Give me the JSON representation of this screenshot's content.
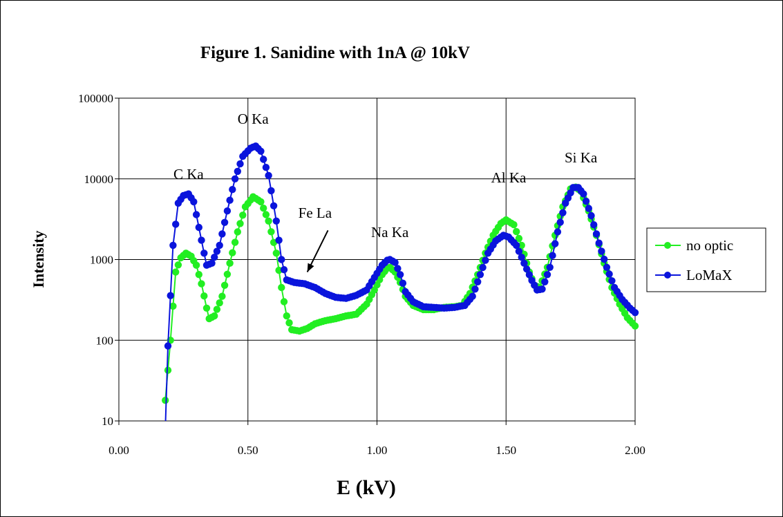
{
  "chart_data": {
    "type": "line",
    "title": "Figure 1.  Sanidine with 1nA @ 10kV",
    "xlabel": "E (kV)",
    "ylabel": "Intensity",
    "xlim": [
      0,
      2
    ],
    "ylim": [
      10,
      100000
    ],
    "yscale": "log",
    "grid": true,
    "x_tick_labels": [
      "0.00",
      "0.50",
      "1.00",
      "1.50",
      "2.00"
    ],
    "x_ticks": [
      0,
      0.5,
      1,
      1.5,
      2
    ],
    "y_tick_labels": [
      "10",
      "100",
      "1000",
      "10000",
      "100000"
    ],
    "y_ticks": [
      10,
      100,
      1000,
      10000,
      100000
    ],
    "legend_position": "right",
    "series": [
      {
        "name": "no optic",
        "color": "#22ee22",
        "points": [
          [
            0.18,
            18
          ],
          [
            0.2,
            100
          ],
          [
            0.22,
            700
          ],
          [
            0.24,
            1050
          ],
          [
            0.26,
            1200
          ],
          [
            0.28,
            1100
          ],
          [
            0.3,
            850
          ],
          [
            0.32,
            500
          ],
          [
            0.34,
            250
          ],
          [
            0.35,
            185
          ],
          [
            0.37,
            200
          ],
          [
            0.4,
            350
          ],
          [
            0.43,
            900
          ],
          [
            0.46,
            2200
          ],
          [
            0.49,
            4500
          ],
          [
            0.52,
            6000
          ],
          [
            0.55,
            5200
          ],
          [
            0.58,
            3000
          ],
          [
            0.61,
            1200
          ],
          [
            0.63,
            450
          ],
          [
            0.65,
            200
          ],
          [
            0.67,
            135
          ],
          [
            0.7,
            130
          ],
          [
            0.73,
            140
          ],
          [
            0.76,
            160
          ],
          [
            0.8,
            175
          ],
          [
            0.84,
            185
          ],
          [
            0.88,
            200
          ],
          [
            0.92,
            210
          ],
          [
            0.96,
            280
          ],
          [
            0.99,
            420
          ],
          [
            1.02,
            650
          ],
          [
            1.04,
            780
          ],
          [
            1.05,
            800
          ],
          [
            1.07,
            700
          ],
          [
            1.09,
            520
          ],
          [
            1.11,
            350
          ],
          [
            1.14,
            270
          ],
          [
            1.18,
            240
          ],
          [
            1.22,
            240
          ],
          [
            1.26,
            255
          ],
          [
            1.3,
            260
          ],
          [
            1.33,
            270
          ],
          [
            1.36,
            380
          ],
          [
            1.39,
            650
          ],
          [
            1.42,
            1200
          ],
          [
            1.45,
            2000
          ],
          [
            1.48,
            2800
          ],
          [
            1.5,
            3100
          ],
          [
            1.53,
            2700
          ],
          [
            1.56,
            1500
          ],
          [
            1.59,
            700
          ],
          [
            1.61,
            480
          ],
          [
            1.63,
            450
          ],
          [
            1.66,
            800
          ],
          [
            1.69,
            2000
          ],
          [
            1.72,
            4500
          ],
          [
            1.75,
            7500
          ],
          [
            1.77,
            7900
          ],
          [
            1.79,
            7000
          ],
          [
            1.82,
            4000
          ],
          [
            1.85,
            2000
          ],
          [
            1.88,
            900
          ],
          [
            1.91,
            450
          ],
          [
            1.94,
            280
          ],
          [
            1.97,
            190
          ],
          [
            2.0,
            150
          ]
        ]
      },
      {
        "name": "LoMaX",
        "color": "#0a14dc",
        "points": [
          [
            0.18,
            8
          ],
          [
            0.19,
            85
          ],
          [
            0.21,
            1500
          ],
          [
            0.23,
            5000
          ],
          [
            0.25,
            6200
          ],
          [
            0.27,
            6500
          ],
          [
            0.29,
            5200
          ],
          [
            0.31,
            2500
          ],
          [
            0.33,
            1200
          ],
          [
            0.34,
            850
          ],
          [
            0.36,
            900
          ],
          [
            0.39,
            1500
          ],
          [
            0.42,
            4000
          ],
          [
            0.45,
            10000
          ],
          [
            0.48,
            19000
          ],
          [
            0.51,
            24000
          ],
          [
            0.53,
            25500
          ],
          [
            0.55,
            22000
          ],
          [
            0.58,
            11000
          ],
          [
            0.61,
            3000
          ],
          [
            0.63,
            1000
          ],
          [
            0.65,
            560
          ],
          [
            0.68,
            520
          ],
          [
            0.72,
            500
          ],
          [
            0.76,
            450
          ],
          [
            0.8,
            380
          ],
          [
            0.84,
            340
          ],
          [
            0.88,
            330
          ],
          [
            0.92,
            360
          ],
          [
            0.96,
            420
          ],
          [
            0.99,
            600
          ],
          [
            1.02,
            850
          ],
          [
            1.04,
            980
          ],
          [
            1.05,
            1000
          ],
          [
            1.07,
            920
          ],
          [
            1.09,
            650
          ],
          [
            1.11,
            400
          ],
          [
            1.14,
            300
          ],
          [
            1.18,
            260
          ],
          [
            1.22,
            255
          ],
          [
            1.26,
            250
          ],
          [
            1.3,
            255
          ],
          [
            1.34,
            270
          ],
          [
            1.37,
            350
          ],
          [
            1.4,
            650
          ],
          [
            1.43,
            1200
          ],
          [
            1.46,
            1700
          ],
          [
            1.49,
            2000
          ],
          [
            1.51,
            1900
          ],
          [
            1.54,
            1500
          ],
          [
            1.57,
            900
          ],
          [
            1.6,
            550
          ],
          [
            1.62,
            420
          ],
          [
            1.64,
            430
          ],
          [
            1.67,
            800
          ],
          [
            1.7,
            2200
          ],
          [
            1.73,
            5000
          ],
          [
            1.76,
            7800
          ],
          [
            1.78,
            7800
          ],
          [
            1.8,
            6500
          ],
          [
            1.83,
            3500
          ],
          [
            1.86,
            1600
          ],
          [
            1.89,
            800
          ],
          [
            1.92,
            450
          ],
          [
            1.95,
            320
          ],
          [
            1.98,
            250
          ],
          [
            2.0,
            220
          ]
        ]
      }
    ],
    "annotations": [
      {
        "text": "C Ka",
        "x": 0.27,
        "y": 10000
      },
      {
        "text": "O Ka",
        "x": 0.52,
        "y": 48000
      },
      {
        "text": "Fe La",
        "x": 0.76,
        "y": 3300
      },
      {
        "text": "Na Ka",
        "x": 1.05,
        "y": 1900
      },
      {
        "text": "Al Ka",
        "x": 1.51,
        "y": 9000
      },
      {
        "text": "Si Ka",
        "x": 1.79,
        "y": 16000
      }
    ],
    "arrow": {
      "from": [
        0.81,
        2300
      ],
      "to": [
        0.73,
        700
      ]
    }
  }
}
